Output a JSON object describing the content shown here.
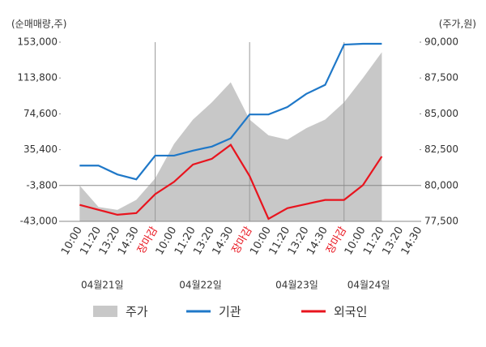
{
  "chart_data": {
    "type": "line",
    "y_label": "(순매매량,주)",
    "y2_label": "(주가,원)",
    "categories": [
      "10:00",
      "11:20",
      "13:20",
      "14:30",
      "장마감",
      "10:00",
      "11:20",
      "13:20",
      "14:30",
      "장마감",
      "10:00",
      "11:20",
      "13:20",
      "14:30",
      "장마감",
      "10:00",
      "11:20",
      "13:20",
      "14:30"
    ],
    "days": [
      "04월21일",
      "04월22일",
      "04월23일",
      "04월24일"
    ],
    "series": [
      {
        "name": "주가",
        "color": "#c8c8c8",
        "axis": "y2",
        "kind": "area",
        "values": [
          80000,
          78500,
          78300,
          79000,
          80500,
          82900,
          84600,
          85800,
          87200,
          84600,
          83500,
          83200,
          84000,
          84600,
          85800,
          87500,
          89300,
          null,
          null
        ]
      },
      {
        "name": "기관",
        "color": "#1f78c8",
        "values": [
          18000,
          18000,
          8300,
          2900,
          28900,
          28900,
          34300,
          38800,
          47800,
          73900,
          73900,
          82000,
          96400,
          106300,
          150300,
          151200,
          151200,
          null,
          null
        ]
      },
      {
        "name": "외국인",
        "color": "#e8141e",
        "values": [
          -25000,
          -30400,
          -35800,
          -34000,
          -13300,
          200,
          19100,
          25400,
          40700,
          6500,
          -40300,
          -28600,
          -24100,
          -19600,
          -19600,
          -3400,
          28000,
          null,
          null
        ]
      }
    ],
    "ylim": [
      -43000,
      153000
    ],
    "yticks": [
      {
        "value": -43000,
        "label": "-43,000"
      },
      {
        "value": -3800,
        "label": "-3,800"
      },
      {
        "value": 35400,
        "label": "35,400"
      },
      {
        "value": 74600,
        "label": "74,600"
      },
      {
        "value": 113800,
        "label": "113,800"
      },
      {
        "value": 153000,
        "label": "153,000"
      }
    ],
    "y2lim": [
      77500,
      90000
    ],
    "y2ticks": [
      {
        "value": 77500,
        "label": "77,500"
      },
      {
        "value": 80000,
        "label": "80,000"
      },
      {
        "value": 82500,
        "label": "82,500"
      },
      {
        "value": 85000,
        "label": "85,000"
      },
      {
        "value": 87500,
        "label": "87,500"
      },
      {
        "value": 90000,
        "label": "90,000"
      }
    ]
  }
}
